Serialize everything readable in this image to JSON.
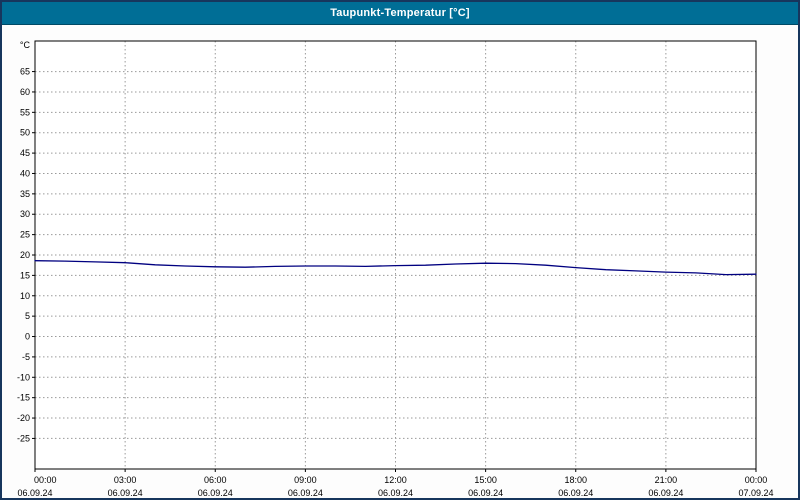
{
  "title_bar": {
    "title": "Taupunkt-Temperatur [°C]",
    "bg_color": "#006e96",
    "text_color": "#ffffff"
  },
  "chart_data": {
    "type": "line",
    "title": "Taupunkt-Temperatur [°C]",
    "ylabel": "°C",
    "y_unit_label": "°C",
    "xlabel": "",
    "xlim": [
      0,
      24
    ],
    "ylim": [
      -32.5,
      72.5
    ],
    "grid": "dotted",
    "legend_position": "none",
    "line_color": "#000080",
    "grid_color": "#9a9a9a",
    "axis_color": "#000000",
    "x_hours": [
      0,
      1,
      2,
      3,
      4,
      5,
      6,
      7,
      8,
      9,
      10,
      11,
      12,
      13,
      14,
      15,
      16,
      17,
      18,
      19,
      20,
      21,
      22,
      23,
      24
    ],
    "values": [
      18.6,
      18.5,
      18.3,
      18.1,
      17.6,
      17.3,
      17.1,
      17.0,
      17.2,
      17.3,
      17.3,
      17.2,
      17.4,
      17.5,
      17.8,
      18.0,
      17.9,
      17.5,
      16.9,
      16.4,
      16.1,
      15.8,
      15.6,
      15.2,
      15.3
    ],
    "x_tick_hours": [
      0,
      3,
      6,
      9,
      12,
      15,
      18,
      21,
      24
    ],
    "x_tick_labels": [
      "00:00",
      "03:00",
      "06:00",
      "09:00",
      "12:00",
      "15:00",
      "18:00",
      "21:00",
      "00:00"
    ],
    "x_date_labels": [
      "06.09.24",
      "06.09.24",
      "06.09.24",
      "06.09.24",
      "06.09.24",
      "06.09.24",
      "06.09.24",
      "06.09.24",
      "07.09.24"
    ],
    "y_ticks": [
      65,
      60,
      55,
      50,
      45,
      40,
      35,
      30,
      25,
      20,
      15,
      10,
      5,
      0,
      -5,
      -10,
      -15,
      -20,
      -25
    ]
  }
}
